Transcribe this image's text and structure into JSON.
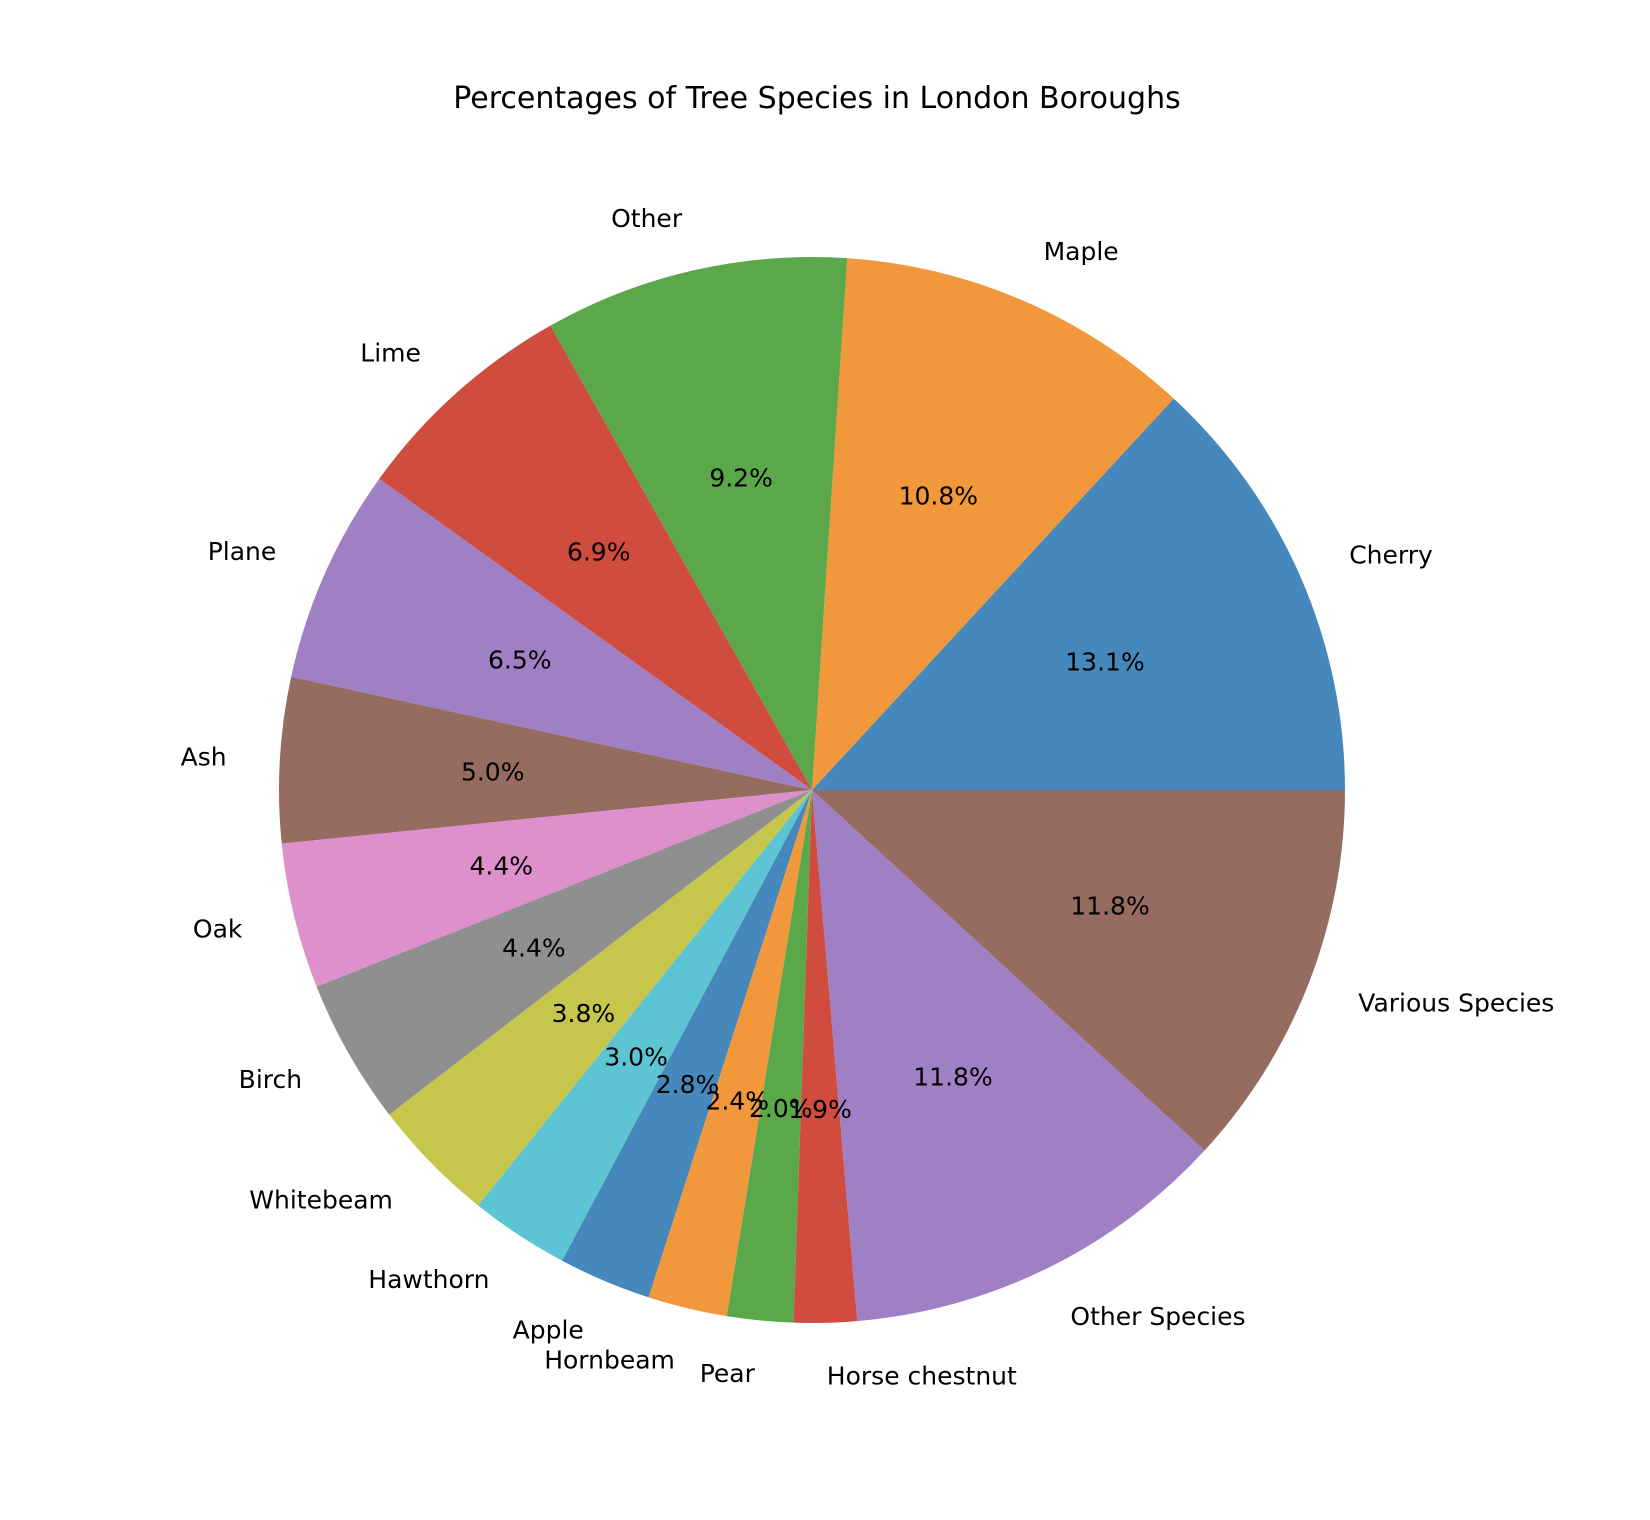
{
  "chart_data": {
    "type": "pie",
    "title": "Percentages of Tree Species in London Boroughs",
    "start_angle_deg": 0,
    "direction": "counterclockwise",
    "slices": [
      {
        "label": "Cherry",
        "value": 13.1,
        "pct_label": "13.1%",
        "color": "#4688BC"
      },
      {
        "label": "Maple",
        "value": 10.8,
        "pct_label": "10.8%",
        "color": "#F0983B"
      },
      {
        "label": "Other",
        "value": 9.2,
        "pct_label": "9.2%",
        "color": "#5BA84A"
      },
      {
        "label": "Lime",
        "value": 6.9,
        "pct_label": "6.9%",
        "color": "#CF4C3F"
      },
      {
        "label": "Plane",
        "value": 6.5,
        "pct_label": "6.5%",
        "color": "#A080C4"
      },
      {
        "label": "Ash",
        "value": 5.0,
        "pct_label": "5.0%",
        "color": "#966C60"
      },
      {
        "label": "Oak",
        "value": 4.4,
        "pct_label": "4.4%",
        "color": "#DD90CB"
      },
      {
        "label": "Birch",
        "value": 4.4,
        "pct_label": "4.4%",
        "color": "#8F8F8F"
      },
      {
        "label": "Whitebeam",
        "value": 3.8,
        "pct_label": "3.8%",
        "color": "#C6C54C"
      },
      {
        "label": "Hawthorn",
        "value": 3.0,
        "pct_label": "3.0%",
        "color": "#5CC4D3"
      },
      {
        "label": "Apple",
        "value": 2.8,
        "pct_label": "2.8%",
        "color": "#4688BC"
      },
      {
        "label": "Hornbeam",
        "value": 2.4,
        "pct_label": "2.4%",
        "color": "#F0983B"
      },
      {
        "label": "Pear",
        "value": 2.0,
        "pct_label": "2.0%",
        "color": "#5BA84A"
      },
      {
        "label": "Horse chestnut",
        "value": 1.9,
        "pct_label": "1.9%",
        "color": "#CF4C3F"
      },
      {
        "label": "Other Species",
        "value": 11.8,
        "pct_label": "11.8%",
        "color": "#A080C4"
      },
      {
        "label": "Various Species",
        "value": 11.8,
        "pct_label": "11.8%",
        "color": "#966C60"
      }
    ]
  }
}
